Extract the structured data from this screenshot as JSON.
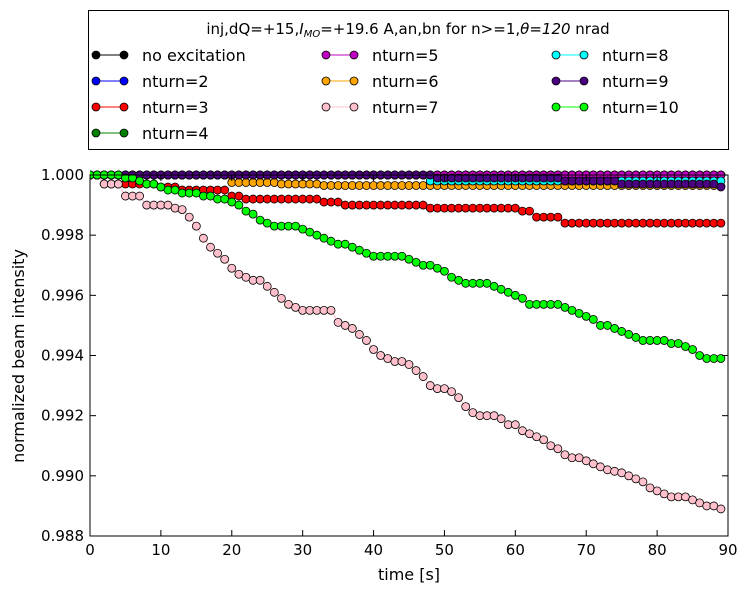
{
  "chart_data": {
    "type": "line",
    "title": "inj,dQ=+15,I_MO=+19.6 A,an,bn for n>=1,θ=120 nrad",
    "title_parts": {
      "prefix": "inj,dQ=+15,",
      "imo_sym": "I",
      "imo_sub": "MO",
      "imo_rest": "=+19.6 A,an,bn for n>=1,",
      "theta_sym": "θ",
      "theta_rest": "=120",
      "suffix": " nrad"
    },
    "xlabel": "time [s]",
    "ylabel": "normalized beam intensity",
    "xlim": [
      0,
      90
    ],
    "ylim": [
      0.988,
      1.0
    ],
    "xticks": [
      "0",
      "10",
      "20",
      "30",
      "40",
      "50",
      "60",
      "70",
      "80",
      "90"
    ],
    "yticks": [
      "0.988",
      "0.990",
      "0.992",
      "0.994",
      "0.996",
      "0.998",
      "1.000"
    ],
    "legend_position": "top, outside, 3 columns",
    "series": [
      {
        "name": "no excitation",
        "color": "#000000",
        "face": "#000000",
        "points": [
          [
            0,
            1.0
          ],
          [
            89,
            1.0
          ]
        ]
      },
      {
        "name": "nturn=2",
        "color": "#0000ff",
        "face": "#0000ff",
        "points": [
          [
            0,
            1.0
          ],
          [
            89,
            1.0
          ]
        ]
      },
      {
        "name": "nturn=3",
        "color": "#ff0000",
        "face": "#ff0000",
        "points": [
          [
            0,
            1.0
          ],
          [
            2,
            0.9997
          ],
          [
            10,
            0.9996
          ],
          [
            13,
            0.9995
          ],
          [
            20,
            0.9993
          ],
          [
            22,
            0.9992
          ],
          [
            33,
            0.9991
          ],
          [
            36,
            0.999
          ],
          [
            48,
            0.9989
          ],
          [
            61,
            0.9988
          ],
          [
            63,
            0.9986
          ],
          [
            67,
            0.9984
          ],
          [
            89,
            0.9984
          ]
        ]
      },
      {
        "name": "nturn=4",
        "color": "#008000",
        "face": "#008000",
        "points": [
          [
            0,
            1.0
          ],
          [
            89,
            1.0
          ]
        ]
      },
      {
        "name": "nturn=5",
        "color": "#c000c0",
        "face": "#c000c0",
        "points": [
          [
            0,
            1.0
          ],
          [
            89,
            1.0
          ]
        ]
      },
      {
        "name": "nturn=6",
        "color": "#ffa500",
        "face": "#ffa500",
        "points": [
          [
            0,
            1.0
          ],
          [
            20,
            0.99975
          ],
          [
            27,
            0.9997
          ],
          [
            33,
            0.99965
          ],
          [
            89,
            0.99962
          ]
        ]
      },
      {
        "name": "nturn=7",
        "color": "#ffc0cb",
        "face": "#ffc0cb",
        "points": [
          [
            0,
            1.0
          ],
          [
            2,
            0.9997
          ],
          [
            5,
            0.9993
          ],
          [
            8,
            0.999
          ],
          [
            12,
            0.9989
          ],
          [
            13,
            0.99885
          ],
          [
            14,
            0.9986
          ],
          [
            15,
            0.9983
          ],
          [
            16,
            0.9979
          ],
          [
            17,
            0.9976
          ],
          [
            18,
            0.9974
          ],
          [
            19,
            0.9972
          ],
          [
            20,
            0.9969
          ],
          [
            21,
            0.9967
          ],
          [
            22,
            0.9966
          ],
          [
            23,
            0.9965
          ],
          [
            25,
            0.9963
          ],
          [
            26,
            0.9961
          ],
          [
            27,
            0.9959
          ],
          [
            28,
            0.9957
          ],
          [
            29,
            0.9956
          ],
          [
            30,
            0.9955
          ],
          [
            34,
            0.9955
          ],
          [
            35,
            0.9951
          ],
          [
            36,
            0.995
          ],
          [
            37,
            0.9949
          ],
          [
            38,
            0.9947
          ],
          [
            39,
            0.9945
          ],
          [
            40,
            0.9942
          ],
          [
            41,
            0.994
          ],
          [
            42,
            0.9939
          ],
          [
            43,
            0.9938
          ],
          [
            45,
            0.9937
          ],
          [
            46,
            0.9935
          ],
          [
            47,
            0.9933
          ],
          [
            48,
            0.993
          ],
          [
            49,
            0.9929
          ],
          [
            51,
            0.9928
          ],
          [
            52,
            0.9926
          ],
          [
            53,
            0.9923
          ],
          [
            54,
            0.9921
          ],
          [
            55,
            0.992
          ],
          [
            58,
            0.9919
          ],
          [
            59,
            0.9917
          ],
          [
            60,
            0.9917
          ],
          [
            61,
            0.9915
          ],
          [
            62,
            0.9914
          ],
          [
            63,
            0.9913
          ],
          [
            64,
            0.9912
          ],
          [
            65,
            0.991
          ],
          [
            66,
            0.9909
          ],
          [
            67,
            0.9907
          ],
          [
            68,
            0.9906
          ],
          [
            70,
            0.9905
          ],
          [
            71,
            0.9904
          ],
          [
            72,
            0.9903
          ],
          [
            73,
            0.9902
          ],
          [
            74,
            0.99015
          ],
          [
            75,
            0.9901
          ],
          [
            76,
            0.99
          ],
          [
            77,
            0.9899
          ],
          [
            78,
            0.9898
          ],
          [
            79,
            0.9896
          ],
          [
            80,
            0.9895
          ],
          [
            81,
            0.9894
          ],
          [
            82,
            0.9893
          ],
          [
            85,
            0.9892
          ],
          [
            86,
            0.9891
          ],
          [
            87,
            0.989
          ],
          [
            89,
            0.9889
          ]
        ]
      },
      {
        "name": "nturn=8",
        "color": "#00ffff",
        "face": "#00ffff",
        "points": [
          [
            0,
            1.0
          ],
          [
            47,
            1.0
          ],
          [
            48,
            0.9998
          ],
          [
            89,
            0.9998
          ]
        ]
      },
      {
        "name": "nturn=9",
        "color": "#4b0082",
        "face": "#4b0082",
        "points": [
          [
            0,
            1.0
          ],
          [
            47,
            1.0
          ],
          [
            49,
            0.9999
          ],
          [
            66,
            0.9999
          ],
          [
            67,
            0.9998
          ],
          [
            75,
            0.9997
          ],
          [
            89,
            0.9996
          ]
        ]
      },
      {
        "name": "nturn=10",
        "color": "#00ff00",
        "face": "#00ff00",
        "points": [
          [
            0,
            1.0
          ],
          [
            5,
            0.9999
          ],
          [
            7,
            0.9998
          ],
          [
            8,
            0.9997
          ],
          [
            10,
            0.9996
          ],
          [
            11,
            0.9995
          ],
          [
            13,
            0.9994
          ],
          [
            16,
            0.9993
          ],
          [
            18,
            0.9992
          ],
          [
            20,
            0.9991
          ],
          [
            21,
            0.999
          ],
          [
            22,
            0.9988
          ],
          [
            23,
            0.9987
          ],
          [
            24,
            0.9985
          ],
          [
            25,
            0.9984
          ],
          [
            26,
            0.9983
          ],
          [
            27,
            0.9983
          ],
          [
            30,
            0.9982
          ],
          [
            31,
            0.9981
          ],
          [
            32,
            0.998
          ],
          [
            33,
            0.9979
          ],
          [
            34,
            0.9978
          ],
          [
            35,
            0.9977
          ],
          [
            37,
            0.9976
          ],
          [
            38,
            0.9975
          ],
          [
            39,
            0.9974
          ],
          [
            40,
            0.9973
          ],
          [
            44,
            0.9973
          ],
          [
            45,
            0.9972
          ],
          [
            46,
            0.9971
          ],
          [
            47,
            0.997
          ],
          [
            49,
            0.9969
          ],
          [
            50,
            0.9968
          ],
          [
            51,
            0.9966
          ],
          [
            52,
            0.9965
          ],
          [
            53,
            0.9964
          ],
          [
            57,
            0.9963
          ],
          [
            58,
            0.9962
          ],
          [
            59,
            0.9961
          ],
          [
            60,
            0.996
          ],
          [
            61,
            0.9959
          ],
          [
            62,
            0.9957
          ],
          [
            67,
            0.9956
          ],
          [
            68,
            0.9955
          ],
          [
            69,
            0.9954
          ],
          [
            70,
            0.9953
          ],
          [
            71,
            0.9952
          ],
          [
            72,
            0.995
          ],
          [
            74,
            0.9949
          ],
          [
            75,
            0.9948
          ],
          [
            76,
            0.9947
          ],
          [
            77,
            0.9946
          ],
          [
            78,
            0.9945
          ],
          [
            80,
            0.9945
          ],
          [
            82,
            0.9944
          ],
          [
            83,
            0.9944
          ],
          [
            84,
            0.9943
          ],
          [
            85,
            0.9942
          ],
          [
            86,
            0.994
          ],
          [
            87,
            0.9939
          ],
          [
            89,
            0.9939
          ]
        ]
      }
    ]
  }
}
